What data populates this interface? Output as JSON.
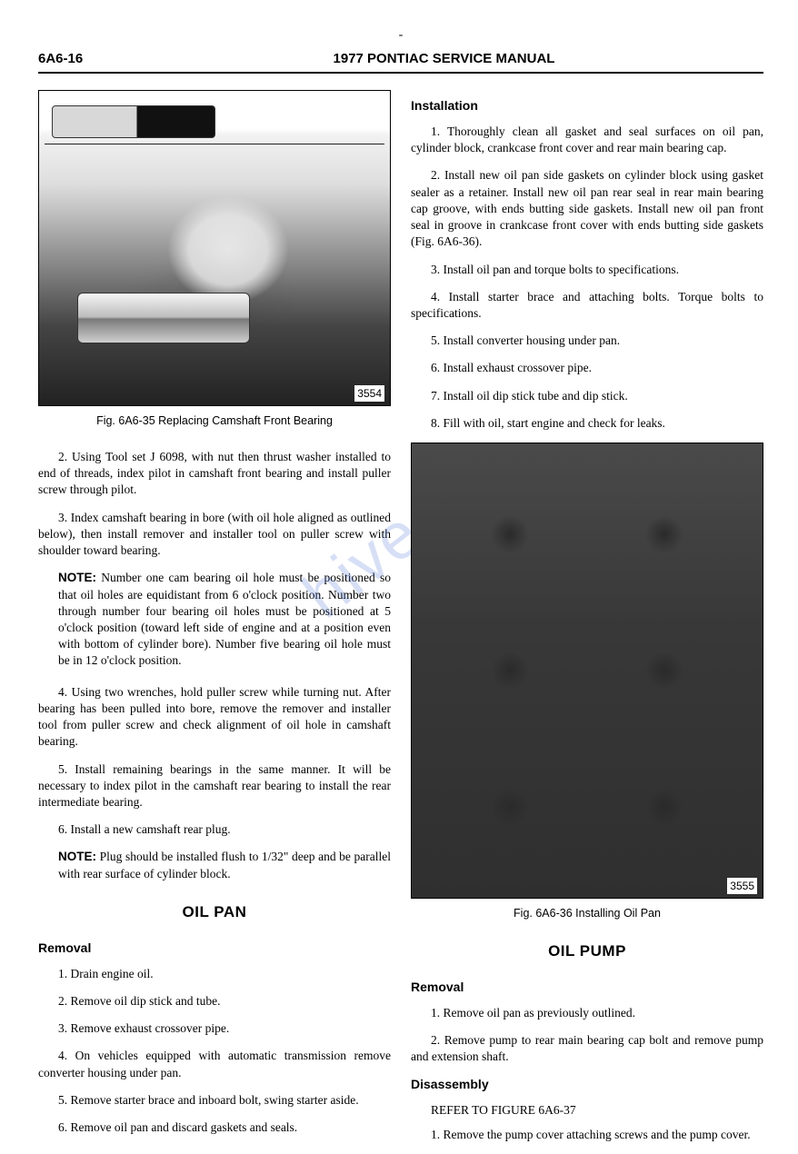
{
  "top_dash": "-",
  "header": {
    "page_number": "6A6-16",
    "manual_title": "1977 PONTIAC SERVICE MANUAL"
  },
  "watermark": "hive.co",
  "left": {
    "fig35": {
      "id": "3554",
      "caption": "Fig. 6A6-35 Replacing Camshaft Front Bearing"
    },
    "p2": "2. Using Tool set J 6098, with nut then thrust washer installed to end of threads, index pilot in camshaft front bearing and install puller screw through pilot.",
    "p3": "3. Index camshaft bearing in bore (with oil hole aligned as outlined below), then install remover and installer tool on puller screw with shoulder toward bearing.",
    "note1_label": "NOTE:",
    "note1": " Number one cam bearing oil hole must be positioned so that oil holes are equidistant from 6 o'clock position. Number two through number four bearing oil holes must be positioned at 5 o'clock position (toward left side of engine and at a position even with bottom of cylinder bore). Number five bearing oil hole must be in 12 o'clock position.",
    "p4": "4. Using two wrenches, hold puller screw while turning nut. After bearing has been pulled into bore, remove the remover and installer tool from puller screw and check alignment of oil hole in camshaft bearing.",
    "p5": "5. Install remaining bearings in the same manner. It will be necessary to index pilot in the camshaft rear bearing to install the rear intermediate bearing.",
    "p6": "6. Install a new camshaft rear plug.",
    "note2_label": "NOTE:",
    "note2": " Plug should be installed flush to 1/32\" deep and be parallel with rear surface of cylinder block.",
    "oil_pan_heading": "OIL PAN",
    "removal_heading": "Removal",
    "r1": "1. Drain engine oil.",
    "r2": "2. Remove oil dip stick and tube.",
    "r3": "3. Remove exhaust crossover pipe.",
    "r4": "4. On vehicles equipped with automatic transmission remove converter housing under pan.",
    "r5": "5. Remove starter brace and inboard bolt, swing starter aside.",
    "r6": "6. Remove oil pan and discard gaskets and seals."
  },
  "right": {
    "installation_heading": "Installation",
    "i1": "1. Thoroughly clean all gasket and seal surfaces on oil pan, cylinder block, crankcase front cover and rear main bearing cap.",
    "i2": "2. Install new oil pan side gaskets on cylinder block using gasket sealer as a retainer. Install new oil pan rear seal in rear main bearing cap groove, with ends butting side gaskets. Install new oil pan front seal in groove in crankcase front cover with ends butting side gaskets (Fig. 6A6-36).",
    "i3": "3. Install oil pan and torque bolts to specifications.",
    "i4": "4. Install starter brace and attaching bolts. Torque bolts to specifications.",
    "i5": "5. Install converter housing under pan.",
    "i6": "6. Install exhaust crossover pipe.",
    "i7": "7. Install oil dip stick tube and dip stick.",
    "i8": "8. Fill with oil, start engine and check for leaks.",
    "fig36": {
      "id": "3555",
      "caption": "Fig. 6A6-36 Installing Oil Pan"
    },
    "oil_pump_heading": "OIL PUMP",
    "removal_heading": "Removal",
    "pr1": "1. Remove oil pan as previously outlined.",
    "pr2": "2. Remove pump to rear main bearing cap bolt and remove pump and extension shaft.",
    "disassembly_heading": "Disassembly",
    "refer": "REFER TO FIGURE 6A6-37",
    "d1": "1. Remove the pump cover attaching screws and the pump cover."
  }
}
